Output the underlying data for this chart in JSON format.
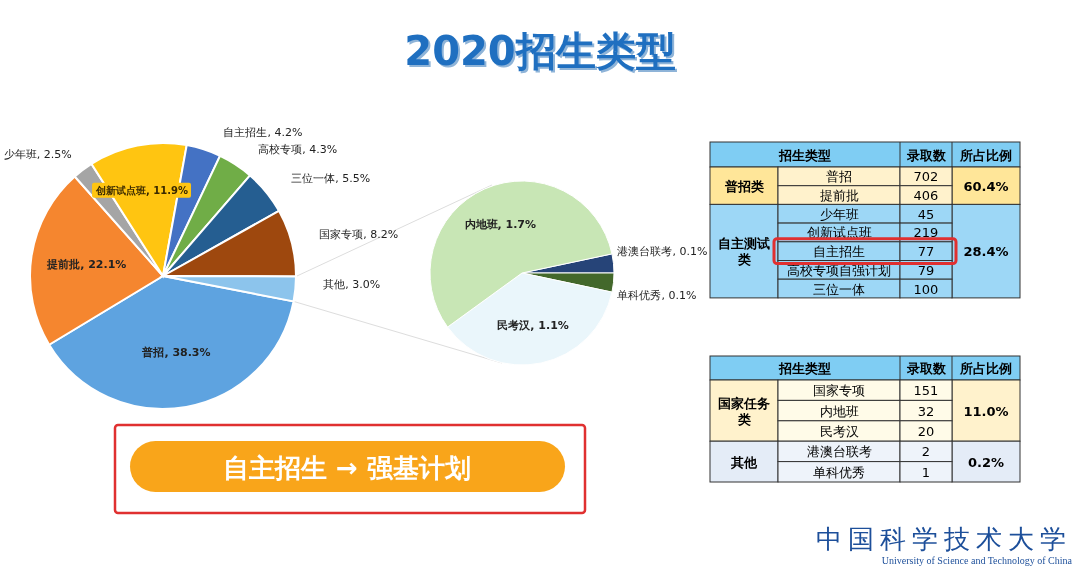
{
  "chart_data": [
    {
      "type": "pie",
      "title": "2020招生类型",
      "categories": [
        "普招",
        "提前批",
        "少年班",
        "创新试点班",
        "自主招生",
        "高校专项",
        "三位一体",
        "国家专项",
        "其他"
      ],
      "values": [
        38.3,
        22.1,
        2.5,
        11.9,
        4.2,
        4.3,
        5.5,
        8.2,
        3.0
      ],
      "value_labels": [
        "38.3%",
        "22.1%",
        "2.5%",
        "11.9%",
        "4.2%",
        "4.3%",
        "5.5%",
        "8.2%",
        "3.0%"
      ],
      "colors": [
        "#5ea3e0",
        "#f5862f",
        "#a5a5a5",
        "#ffc511",
        "#4472c4",
        "#70ad47",
        "#255e91",
        "#9e480e",
        "#8cc4ec"
      ]
    },
    {
      "type": "pie",
      "categories": [
        "港澳台联考",
        "单科优秀",
        "民考汉",
        "内地班"
      ],
      "values": [
        0.1,
        0.1,
        1.1,
        1.7
      ],
      "value_labels": [
        "0.1%",
        "0.1%",
        "1.1%",
        "1.7%"
      ],
      "colors": [
        "#264478",
        "#43682b",
        "#eaf6fb",
        "#c8e6b5"
      ]
    },
    {
      "type": "other",
      "categories": [
        "普招",
        "提前批",
        "少年班",
        "创新试点班",
        "自主招生",
        "高校专项自强计划",
        "三位一体"
      ],
      "values": [
        702,
        406,
        45,
        219,
        77,
        79,
        100
      ],
      "data_labels": true,
      "annotations": [
        "招生类型",
        "录取数",
        "所占比例",
        "普招类",
        "60.4%",
        "自主测试类",
        "28.4%"
      ]
    },
    {
      "type": "other",
      "categories": [
        "国家专项",
        "内地班",
        "民考汉",
        "港澳台联考",
        "单科优秀"
      ],
      "values": [
        151,
        32,
        20,
        2,
        1
      ],
      "data_labels": true,
      "annotations": [
        "招生类型",
        "录取数",
        "所占比例",
        "国家任务类",
        "11.0%",
        "其他",
        "0.2%"
      ]
    },
    {
      "type": "other",
      "annotations": [
        "自主招生 → 强基计划"
      ]
    },
    {
      "type": "other",
      "annotations": [
        "中国科学技术大学",
        "University of Science and Technology of China"
      ]
    }
  ]
}
